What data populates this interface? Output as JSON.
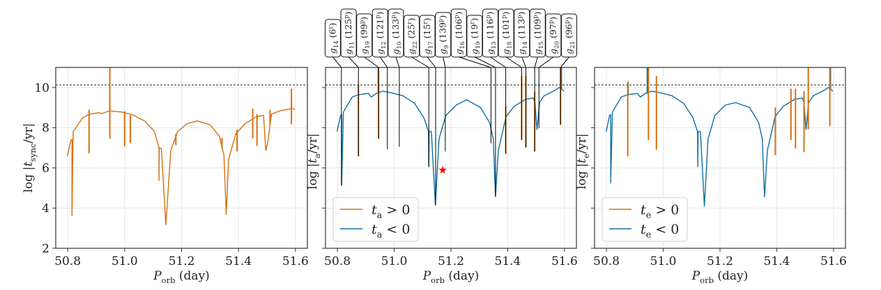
{
  "chart_data": [
    {
      "type": "line",
      "xlabel": "P_{orb} (day)",
      "ylabel": "log |t_{sync}/yr|",
      "xlim": [
        50.758,
        51.642
      ],
      "ylim": [
        2,
        11
      ],
      "xticks": [
        "50.8",
        "51.0",
        "51.2",
        "51.4",
        "51.6"
      ],
      "yticks": [
        "2",
        "4",
        "6",
        "8",
        "10"
      ],
      "grid": true,
      "hline": 10.13,
      "legend": null,
      "curve": {
        "color": "#d4700f",
        "x": [
          50.799,
          50.811,
          50.815,
          50.815,
          50.819,
          50.852,
          50.876,
          50.909,
          50.921,
          50.946,
          50.99,
          51.031,
          51.072,
          51.105,
          51.121,
          51.121,
          51.122,
          51.129,
          51.145,
          51.162,
          51.186,
          51.219,
          51.255,
          51.3,
          51.333,
          51.349,
          51.357,
          51.365,
          51.39,
          51.423,
          51.463,
          51.488,
          51.496,
          51.504,
          51.516,
          51.545,
          51.586,
          51.598
        ],
        "y": [
          6.58,
          7.39,
          7.4,
          3.63,
          7.8,
          8.49,
          8.67,
          8.75,
          8.7,
          8.84,
          8.78,
          8.63,
          8.32,
          7.8,
          6.99,
          5.37,
          6.99,
          6.97,
          3.17,
          6.87,
          7.8,
          8.2,
          8.34,
          8.15,
          7.57,
          6.64,
          3.69,
          6.41,
          7.68,
          8.2,
          8.55,
          8.61,
          6.87,
          7.35,
          8.67,
          8.84,
          8.95,
          8.93
        ]
      },
      "spikes": [
        {
          "x": 50.875,
          "y": [
            6.73,
            8.9
          ],
          "color": "#d4700f"
        },
        {
          "x": 50.948,
          "y": [
            7.45,
            11
          ],
          "color": "#d4700f"
        },
        {
          "x": 51.0,
          "y": [
            7.08,
            8.82
          ],
          "color": "#d4700f"
        },
        {
          "x": 51.02,
          "y": [
            7.24,
            8.63
          ],
          "color": "#d4700f"
        },
        {
          "x": 51.18,
          "y": [
            7.13,
            7.7
          ],
          "color": "#d4700f"
        },
        {
          "x": 51.342,
          "y": [
            7.0,
            7.5
          ],
          "color": "#d4700f"
        },
        {
          "x": 51.395,
          "y": [
            6.82,
            7.9
          ],
          "color": "#d4700f"
        },
        {
          "x": 51.45,
          "y": [
            7.47,
            8.95
          ],
          "color": "#d4700f"
        },
        {
          "x": 51.465,
          "y": [
            7.1,
            8.67
          ],
          "color": "#d4700f"
        },
        {
          "x": 51.511,
          "y": [
            8.15,
            8.9
          ],
          "color": "#d4700f"
        },
        {
          "x": 51.586,
          "y": [
            8.17,
            9.94
          ],
          "color": "#d4700f"
        }
      ]
    },
    {
      "type": "line",
      "xlabel": "P_{orb} (day)",
      "ylabel": "log |t_{a}/yr|",
      "xlim": [
        50.758,
        51.642
      ],
      "ylim": [
        2,
        11
      ],
      "xticks": [
        "50.8",
        "51.0",
        "51.2",
        "51.4",
        "51.6"
      ],
      "yticks": [],
      "grid": true,
      "hline": 10.13,
      "legend": {
        "position": "lower left",
        "entries": [
          {
            "label": "t_{a} > 0",
            "color": "#d4700f"
          },
          {
            "label": "t_{a} < 0",
            "color": "#0f6ea3"
          }
        ]
      },
      "curve": {
        "color": "#0f6ea3",
        "x": [
          50.799,
          50.811,
          50.815,
          50.815,
          50.821,
          50.852,
          50.876,
          50.909,
          50.919,
          50.937,
          50.959,
          50.99,
          51.031,
          51.072,
          51.105,
          51.121,
          51.122,
          51.123,
          51.131,
          51.145,
          51.158,
          51.182,
          51.219,
          51.255,
          51.304,
          51.336,
          51.349,
          51.357,
          51.367,
          51.394,
          51.423,
          51.464,
          51.49,
          51.496,
          51.503,
          51.512,
          51.528,
          51.561,
          51.582,
          51.598
        ],
        "y": [
          7.8,
          8.61,
          8.65,
          5.13,
          8.78,
          9.53,
          9.65,
          9.71,
          9.53,
          9.71,
          9.82,
          9.74,
          9.59,
          9.21,
          8.49,
          7.8,
          6.06,
          7.8,
          7.82,
          4.15,
          7.45,
          8.61,
          9.13,
          9.39,
          9.01,
          8.26,
          7.45,
          4.57,
          6.87,
          8.55,
          9.07,
          9.42,
          9.48,
          9.25,
          7.91,
          9.25,
          9.59,
          9.82,
          10.0,
          9.82
        ]
      },
      "spikes": [
        {
          "x": 50.944,
          "y": [
            9.7,
            11
          ],
          "color": "#0f6ea3"
        },
        {
          "x": 51.589,
          "y": [
            9.9,
            11
          ],
          "color": "#0f6ea3"
        },
        {
          "x": 50.874,
          "y": [
            6.58,
            10.13
          ],
          "color": "#d4700f"
        },
        {
          "x": 50.945,
          "y": [
            7.45,
            11
          ],
          "color": "#d4700f"
        },
        {
          "x": 51.393,
          "y": [
            6.7,
            9.07
          ],
          "color": "#d4700f"
        },
        {
          "x": 51.449,
          "y": [
            7.39,
            10.58
          ],
          "color": "#d4700f"
        },
        {
          "x": 51.464,
          "y": [
            7.01,
            10.58
          ],
          "color": "#d4700f"
        },
        {
          "x": 51.495,
          "y": [
            6.82,
            9.8
          ],
          "color": "#d4700f"
        },
        {
          "x": 51.586,
          "y": [
            8.15,
            11
          ],
          "color": "#d4700f"
        }
      ],
      "marker": {
        "symbol": "star",
        "x": 51.171,
        "y": 5.89,
        "color": "#ff0000"
      },
      "annotations": [
        {
          "label": "g_{14} (6^{r})",
          "x": 50.814,
          "y": 5.13
        },
        {
          "label": "g_{11} (125^{p})",
          "x": 50.874,
          "y": 6.58
        },
        {
          "label": "g_{19} (99^{p})",
          "x": 50.945,
          "y": 7.45
        },
        {
          "label": "g_{12} (121^{p})",
          "x": 50.976,
          "y": 6.93
        },
        {
          "label": "g_{10} (133^{p})",
          "x": 51.018,
          "y": 7.05
        },
        {
          "label": "g_{22} (25^{r})",
          "x": 51.122,
          "y": 6.06
        },
        {
          "label": "g_{17} (15^{r})",
          "x": 51.146,
          "y": 4.15
        },
        {
          "label": "g_{9} (139^{p})",
          "x": 51.18,
          "y": 6.82
        },
        {
          "label": "g_{16} (106^{p})",
          "x": 51.341,
          "y": 7.22
        },
        {
          "label": "g_{19} (19^{r})",
          "x": 51.357,
          "y": 4.57
        },
        {
          "label": "g_{13} (116^{p})",
          "x": 51.393,
          "y": 6.7
        },
        {
          "label": "g_{18} (101^{p})",
          "x": 51.449,
          "y": 7.39
        },
        {
          "label": "g_{14} (113^{p})",
          "x": 51.464,
          "y": 7.01
        },
        {
          "label": "g_{15} (109^{p})",
          "x": 51.495,
          "y": 6.82
        },
        {
          "label": "g_{20} (97^{p})",
          "x": 51.51,
          "y": 7.97
        },
        {
          "label": "g_{21} (96^{p})",
          "x": 51.586,
          "y": 8.15
        }
      ]
    },
    {
      "type": "line",
      "xlabel": "P_{orb} (day)",
      "ylabel": "log |t_{e}/yr|",
      "xlim": [
        50.758,
        51.642
      ],
      "ylim": [
        2,
        11
      ],
      "xticks": [
        "50.8",
        "51.0",
        "51.2",
        "51.4",
        "51.6"
      ],
      "yticks": [],
      "grid": true,
      "hline": 10.13,
      "legend": {
        "position": "lower left",
        "entries": [
          {
            "label": "t_{e} > 0",
            "color": "#d4700f"
          },
          {
            "label": "t_{e} < 0",
            "color": "#0f6ea3"
          }
        ]
      },
      "curve": {
        "color": "#0f6ea3",
        "x": [
          50.799,
          50.811,
          50.815,
          50.815,
          50.821,
          50.852,
          50.876,
          50.909,
          50.919,
          50.937,
          50.959,
          50.99,
          51.031,
          51.072,
          51.105,
          51.121,
          51.122,
          51.123,
          51.131,
          51.145,
          51.158,
          51.182,
          51.219,
          51.255,
          51.304,
          51.336,
          51.349,
          51.357,
          51.367,
          51.394,
          51.423,
          51.464,
          51.49,
          51.496,
          51.503,
          51.512,
          51.528,
          51.561,
          51.582,
          51.598
        ],
        "y": [
          7.8,
          8.61,
          8.65,
          5.26,
          8.78,
          9.53,
          9.65,
          9.71,
          9.53,
          9.71,
          9.82,
          9.74,
          9.59,
          9.21,
          8.49,
          7.8,
          6.06,
          7.8,
          7.82,
          4.09,
          7.45,
          8.61,
          9.13,
          9.25,
          9.01,
          8.26,
          7.45,
          4.56,
          6.87,
          8.55,
          9.07,
          9.42,
          9.48,
          9.25,
          7.91,
          9.25,
          9.59,
          9.82,
          10.0,
          9.82
        ]
      },
      "spikes": [
        {
          "x": 50.876,
          "y": [
            9.6,
            10.29
          ],
          "color": "#0f6ea3"
        },
        {
          "x": 50.944,
          "y": [
            9.7,
            11
          ],
          "color": "#0f6ea3"
        },
        {
          "x": 51.589,
          "y": [
            9.9,
            11
          ],
          "color": "#0f6ea3"
        },
        {
          "x": 50.875,
          "y": [
            6.58,
            10.29
          ],
          "color": "#d4700f"
        },
        {
          "x": 50.948,
          "y": [
            7.39,
            11
          ],
          "color": "#d4700f"
        },
        {
          "x": 50.976,
          "y": [
            6.9,
            10.58
          ],
          "color": "#d4700f"
        },
        {
          "x": 51.395,
          "y": [
            6.64,
            9.01
          ],
          "color": "#d4700f"
        },
        {
          "x": 51.45,
          "y": [
            7.39,
            9.94
          ],
          "color": "#d4700f"
        },
        {
          "x": 51.466,
          "y": [
            6.97,
            9.94
          ],
          "color": "#d4700f"
        },
        {
          "x": 51.496,
          "y": [
            6.78,
            9.82
          ],
          "color": "#d4700f"
        },
        {
          "x": 51.511,
          "y": [
            7.91,
            11
          ],
          "color": "#d4700f"
        },
        {
          "x": 51.587,
          "y": [
            8.09,
            11
          ],
          "color": "#d4700f"
        }
      ]
    }
  ]
}
